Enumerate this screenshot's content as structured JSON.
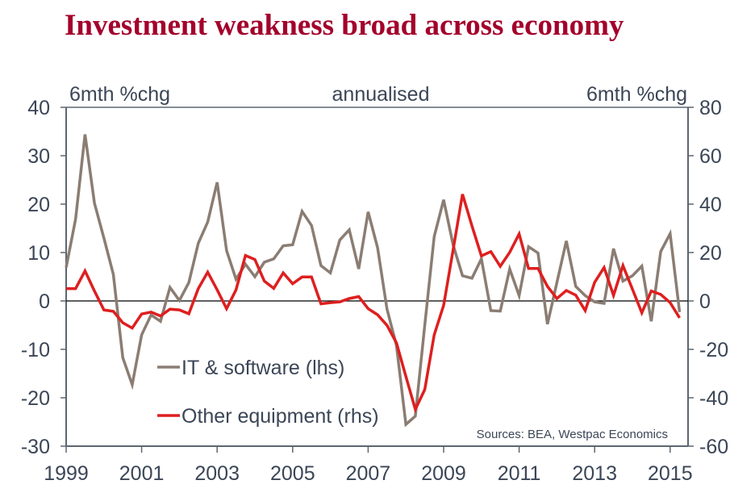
{
  "title": "Investment weakness broad across economy",
  "chart_data": {
    "type": "line",
    "title": "Investment weakness broad across economy",
    "subtitle": "annualised",
    "ylabel_left": "6mth %chg",
    "ylabel_right": "6mth %chg",
    "ylim_left": [
      -30,
      40
    ],
    "ylim_right": [
      -60,
      80
    ],
    "yticks_left": [
      "40",
      "30",
      "20",
      "10",
      "0",
      "-10",
      "-20",
      "-30"
    ],
    "yticks_right": [
      "80",
      "60",
      "40",
      "20",
      "0",
      "-20",
      "-40",
      "-60"
    ],
    "xticks": [
      "1999",
      "2001",
      "2003",
      "2005",
      "2007",
      "2009",
      "2011",
      "2013",
      "2015"
    ],
    "x_start": 1999.0,
    "x_step": 0.25,
    "source": "Sources: BEA, Westpac Economics",
    "legend_position": "bottom-left",
    "series": [
      {
        "name": "IT & software (lhs)",
        "axis": "left",
        "color": "#8b7d73",
        "values": [
          6.9,
          16.9,
          34.4,
          20.2,
          13,
          5.5,
          -11.7,
          -17.3,
          -7,
          -2.9,
          -4.2,
          2.8,
          0.1,
          3.8,
          11.9,
          16.3,
          24.5,
          10.4,
          4.5,
          7.6,
          5,
          8,
          8.7,
          11.4,
          11.6,
          18.5,
          15.6,
          7.3,
          5.8,
          12.6,
          14.7,
          6.6,
          18.4,
          11,
          -1.7,
          -9.2,
          -25.5,
          -23.8,
          -5,
          13.3,
          20.9,
          11.6,
          5.2,
          4.7,
          8.7,
          -2,
          -2.1,
          6.6,
          1.1,
          11.2,
          9.9,
          -4.8,
          3.8,
          12.4,
          3,
          1.1,
          -0.2,
          -0.5,
          10.8,
          4.1,
          5.2,
          7.2,
          -4.2,
          10.2,
          13.9,
          -2.3
        ]
      },
      {
        "name": "Other equipment (rhs)",
        "axis": "right",
        "color": "#de1f1f",
        "values": [
          5.1,
          5.1,
          12.4,
          4.1,
          -3.7,
          -4.3,
          -9,
          -11.2,
          -5.4,
          -4.6,
          -6.2,
          -3.4,
          -3.7,
          -5.3,
          5.1,
          11.9,
          4.6,
          -3.2,
          4.6,
          18.8,
          17.1,
          8.2,
          5.2,
          11.6,
          7.1,
          9.9,
          9.9,
          -1.2,
          -0.7,
          -0.4,
          1,
          1.8,
          -3.2,
          -5.7,
          -10.1,
          -17.3,
          -31.2,
          -44.8,
          -36.6,
          -14,
          -1.8,
          21,
          44.1,
          31,
          18.6,
          20.4,
          14.3,
          20.1,
          27.7,
          13.4,
          13.4,
          6,
          1,
          4.3,
          2.4,
          -4,
          7.7,
          13.8,
          2.3,
          14.6,
          4.9,
          -4.9,
          4.1,
          2.7,
          -0.7,
          -7
        ]
      }
    ]
  }
}
